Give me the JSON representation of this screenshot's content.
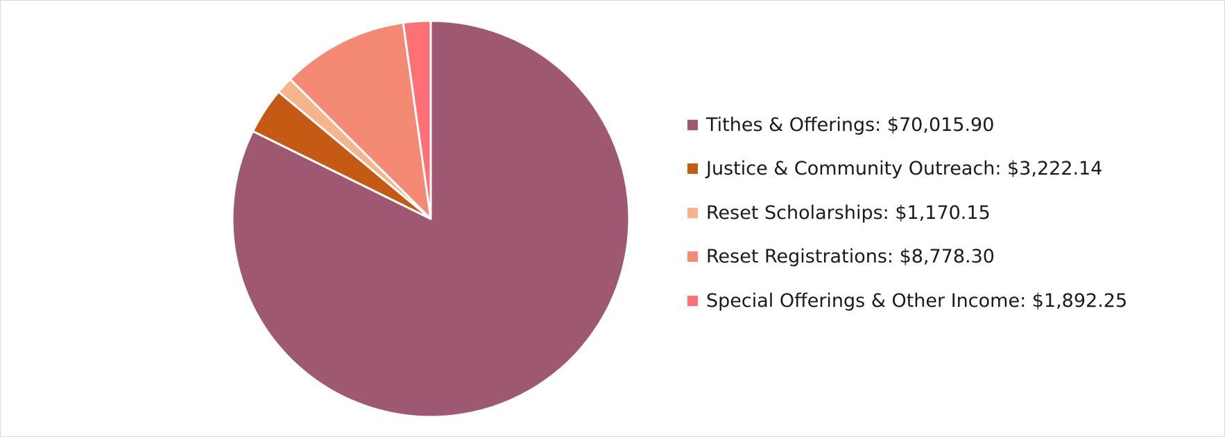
{
  "chart_data": {
    "type": "pie",
    "legend_position": "right",
    "slices": [
      {
        "label": "Tithes & Offerings: $70,015.90",
        "value": 70015.9,
        "color": "#9e5872"
      },
      {
        "label": "Justice & Community Outreach: $3,222.14",
        "value": 3222.14,
        "color": "#c55a15"
      },
      {
        "label": "Reset Scholarships: $1,170.15",
        "value": 1170.15,
        "color": "#f5b48c"
      },
      {
        "label": "Reset Registrations: $8,778.30",
        "value": 8778.3,
        "color": "#f48a73"
      },
      {
        "label": "Special Offerings & Other Income: $1,892.25",
        "value": 1892.25,
        "color": "#fd7075"
      }
    ]
  }
}
